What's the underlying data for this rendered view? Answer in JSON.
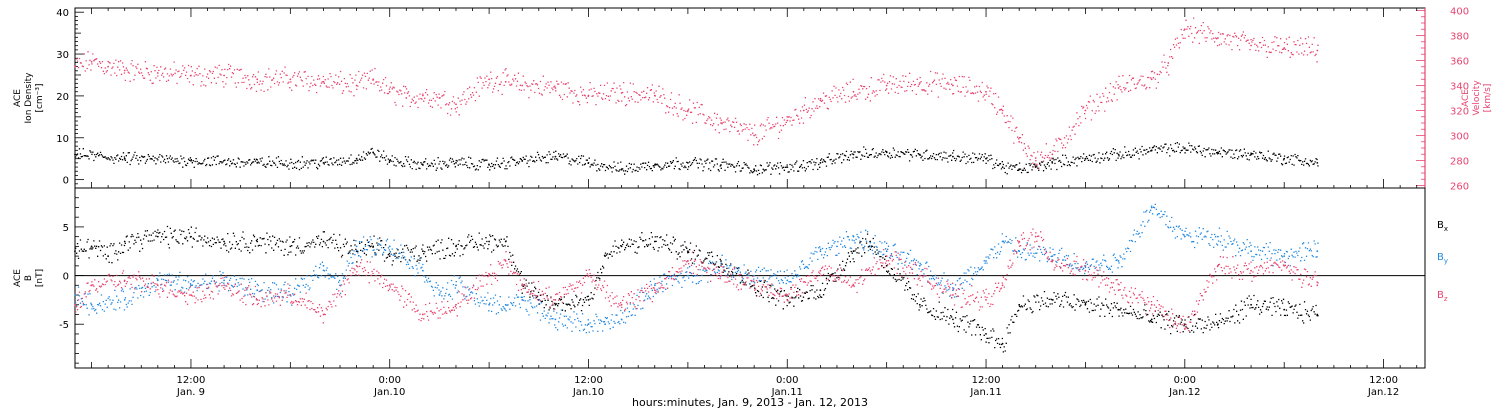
{
  "chart_data": {
    "type": "scatter",
    "title": "",
    "xlabel": "hours:minutes, Jan.  9, 2013 - Jan. 12, 2013",
    "x_unit": "hours since 2013-01-09 00:00",
    "xlim": [
      5,
      86.5
    ],
    "x_ticks": [
      {
        "x": 12,
        "label": "12:00",
        "sublabel": "Jan. 9"
      },
      {
        "x": 24,
        "label": "0:00",
        "sublabel": "Jan.10"
      },
      {
        "x": 36,
        "label": "12:00",
        "sublabel": "Jan.10"
      },
      {
        "x": 48,
        "label": "0:00",
        "sublabel": "Jan.11"
      },
      {
        "x": 60,
        "label": "12:00",
        "sublabel": "Jan.11"
      },
      {
        "x": 72,
        "label": "0:00",
        "sublabel": "Jan.12"
      },
      {
        "x": 84,
        "label": "12:00",
        "sublabel": "Jan.12"
      }
    ],
    "panels": [
      {
        "name": "density-velocity",
        "ylabel_left": [
          "ACE",
          "Ion Density",
          "[cm⁻³]"
        ],
        "ylim_left": [
          -2,
          41
        ],
        "yticks_left": [
          0,
          10,
          20,
          30,
          40
        ],
        "ylabel_right": [
          "ACE",
          "Velocity",
          "[km/s]"
        ],
        "ylim_right": [
          258,
          402
        ],
        "yticks_right": [
          260,
          280,
          300,
          320,
          340,
          360,
          380,
          400
        ],
        "right_axis_color": "#e8456f",
        "series": [
          {
            "name": "Ion Density",
            "axis": "left",
            "color": "#000000",
            "x": [
              5,
              8,
              12,
              16,
              20,
              22,
              23,
              24,
              26,
              28,
              30,
              32,
              34,
              36,
              38,
              40,
              42,
              44,
              46,
              48,
              50,
              52,
              54,
              56,
              58,
              60,
              61,
              62,
              63,
              64,
              66,
              68,
              70,
              72,
              74,
              76,
              78,
              80
            ],
            "y": [
              6,
              5,
              4.5,
              4,
              4,
              5,
              6.5,
              4.5,
              3.5,
              4,
              3.5,
              4.5,
              5.5,
              4,
              2.5,
              3.5,
              4,
              3.5,
              2.5,
              3,
              4,
              6,
              6.5,
              6,
              5.5,
              5,
              3,
              2.5,
              3,
              4,
              5,
              6,
              7,
              7.5,
              6.5,
              6,
              5,
              4
            ]
          },
          {
            "name": "Velocity",
            "axis": "right",
            "color": "#e8456f",
            "x": [
              5,
              6,
              7,
              8,
              10,
              12,
              14,
              16,
              18,
              20,
              22,
              23,
              24,
              25,
              26,
              27,
              28,
              30,
              31,
              32,
              34,
              36,
              38,
              40,
              42,
              44,
              46,
              48,
              49,
              50,
              52,
              54,
              56,
              58,
              60,
              61,
              62,
              63,
              64,
              66,
              68,
              70,
              71,
              72,
              74,
              76,
              78,
              80
            ],
            "y": [
              355,
              359,
              355,
              352,
              350,
              348,
              348,
              345,
              345,
              343,
              340,
              345,
              335,
              330,
              332,
              330,
              325,
              345,
              343,
              340,
              338,
              332,
              334,
              332,
              320,
              310,
              300,
              312,
              320,
              328,
              335,
              340,
              342,
              340,
              335,
              320,
              295,
              282,
              285,
              320,
              338,
              345,
              358,
              385,
              378,
              372,
              370,
              368
            ]
          }
        ]
      },
      {
        "name": "magnetic-field",
        "ylabel": [
          "ACE",
          "B",
          "[nT]"
        ],
        "ylim": [
          -9.5,
          9
        ],
        "yticks": [
          -5,
          0,
          5
        ],
        "zero_line": true,
        "series": [
          {
            "name": "B",
            "sub": "x",
            "color": "#000000",
            "x": [
              5,
              6,
              7,
              8,
              10,
              12,
              14,
              16,
              18,
              20,
              22,
              23,
              24,
              26,
              28,
              30,
              31,
              32,
              33,
              34,
              36,
              37,
              38,
              40,
              42,
              44,
              46,
              48,
              50,
              52,
              53,
              54,
              56,
              58,
              60,
              61,
              62,
              64,
              66,
              68,
              70,
              72,
              74,
              76,
              78,
              80
            ],
            "y": [
              2.5,
              3,
              2,
              3.5,
              4,
              4,
              3.5,
              3.5,
              3,
              3.5,
              2.5,
              3,
              2,
              2.5,
              3,
              3.5,
              3.5,
              -1,
              -2.5,
              -3,
              -2.5,
              2,
              3,
              3.5,
              2.5,
              1.5,
              -1,
              -2.5,
              -1.5,
              2.5,
              3.5,
              1,
              -3,
              -4.5,
              -6,
              -7,
              -3,
              -2.5,
              -3,
              -3.5,
              -4.5,
              -5,
              -5,
              -3,
              -3.5,
              -4
            ]
          },
          {
            "name": "B",
            "sub": "y",
            "color": "#2389e1",
            "x": [
              5,
              6,
              8,
              10,
              12,
              14,
              16,
              18,
              20,
              21,
              22,
              24,
              26,
              27,
              28,
              30,
              31,
              32,
              34,
              36,
              37,
              38,
              40,
              42,
              44,
              46,
              48,
              50,
              51,
              52,
              54,
              56,
              58,
              60,
              61,
              62,
              64,
              66,
              68,
              70,
              72,
              74,
              76,
              78,
              80
            ],
            "y": [
              -2,
              -3,
              -2.5,
              -0.5,
              -1,
              -0.5,
              -1.5,
              -2,
              1,
              -1,
              3,
              3,
              0.5,
              -2,
              -1,
              -3,
              -3,
              -2.5,
              -4.5,
              -5,
              -5,
              -4.5,
              -1,
              0,
              1,
              0,
              -0.5,
              2.5,
              3,
              4,
              2.5,
              1,
              -1.5,
              1.5,
              3.5,
              2.5,
              2,
              1,
              1.5,
              7,
              4,
              4,
              2.5,
              2,
              2.5
            ]
          },
          {
            "name": "B",
            "sub": "z",
            "color": "#e8456f",
            "x": [
              5,
              6,
              8,
              10,
              12,
              14,
              16,
              18,
              20,
              22,
              24,
              26,
              28,
              30,
              31,
              32,
              34,
              36,
              38,
              40,
              42,
              44,
              46,
              48,
              50,
              52,
              54,
              56,
              58,
              60,
              61,
              62,
              63,
              64,
              66,
              68,
              70,
              72,
              74,
              76,
              78,
              80
            ],
            "y": [
              -3,
              -1,
              -0.5,
              -1,
              -2,
              -1,
              -2.5,
              -2,
              -4,
              1,
              -1,
              -4,
              -3,
              0,
              1.5,
              -1,
              -2.5,
              0,
              -3,
              -1.5,
              1.5,
              0,
              -1,
              -2,
              0.5,
              -1,
              2,
              0,
              -2,
              -2.5,
              -1,
              3.5,
              4,
              1.5,
              0.5,
              -1.5,
              -3,
              -5.5,
              1,
              0.5,
              1,
              -1
            ]
          }
        ]
      }
    ]
  }
}
